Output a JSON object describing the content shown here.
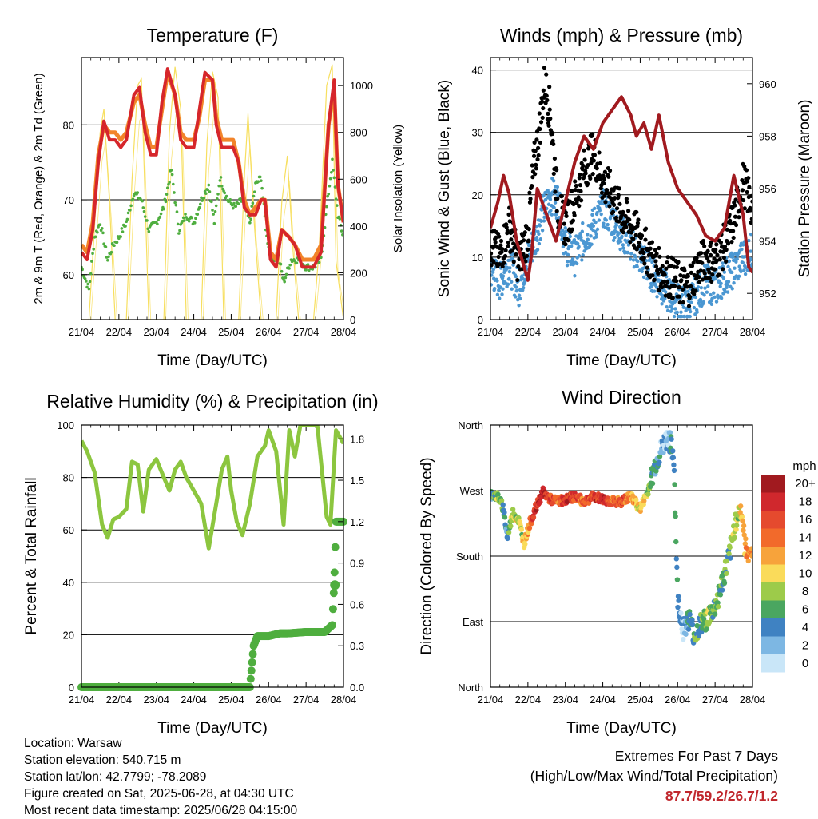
{
  "colors": {
    "temp_2m": "#d6262b",
    "temp_9m": "#f2842a",
    "dewpoint": "#4fae3f",
    "solar": "#f7df5f",
    "wind": "#4b97d2",
    "gust": "#000000",
    "pressure": "#a11a1f",
    "rh": "#8cc63f",
    "precip": "#4fae3f",
    "extremes": "#c0272d"
  },
  "chart_data": [
    {
      "id": "temperature",
      "type": "line",
      "title": "Temperature (F)",
      "xlabel": "Time (Day/UTC)",
      "ylabel": "2m & 9m T (Red, Orange) & 2m Td (Green)",
      "y2label": "Solar Insolation (Yellow)",
      "xlim": [
        0,
        7
      ],
      "x_ticks": [
        "21/04",
        "22/04",
        "23/04",
        "24/04",
        "25/04",
        "26/04",
        "27/04",
        "28/04"
      ],
      "ylim": [
        54,
        89
      ],
      "y_ticks": [
        60,
        70,
        80
      ],
      "gridlines": [
        60,
        70,
        80
      ],
      "y2lim": [
        0,
        1120
      ],
      "y2_ticks": [
        0,
        200,
        400,
        600,
        800,
        1000
      ],
      "grid": true,
      "series": [
        {
          "name": "2m T",
          "axis": "left",
          "x": [
            0,
            0.15,
            0.3,
            0.45,
            0.6,
            0.75,
            0.9,
            1.05,
            1.2,
            1.4,
            1.55,
            1.7,
            1.85,
            2.0,
            2.15,
            2.3,
            2.5,
            2.65,
            2.8,
            3.0,
            3.15,
            3.3,
            3.5,
            3.6,
            3.75,
            3.9,
            4.05,
            4.2,
            4.35,
            4.5,
            4.65,
            4.8,
            4.9,
            5.05,
            5.2,
            5.35,
            5.55,
            5.7,
            5.9,
            6.05,
            6.2,
            6.4,
            6.6,
            6.75,
            6.85,
            7.0
          ],
          "y": [
            63,
            62,
            66,
            75,
            80.5,
            78,
            78,
            77,
            78,
            84,
            85,
            79,
            76,
            76,
            83,
            87.5,
            84,
            78,
            77,
            77,
            82,
            87,
            86,
            80,
            77,
            77,
            77,
            75,
            69,
            68,
            68,
            70,
            70,
            62,
            61,
            66,
            65,
            64,
            61,
            61,
            61,
            63,
            80,
            86,
            72,
            67
          ]
        },
        {
          "name": "9m T",
          "axis": "left",
          "x": [
            0,
            0.15,
            0.3,
            0.45,
            0.6,
            0.75,
            0.9,
            1.05,
            1.2,
            1.4,
            1.55,
            1.7,
            1.85,
            2.0,
            2.15,
            2.3,
            2.5,
            2.65,
            2.8,
            3.0,
            3.15,
            3.3,
            3.5,
            3.6,
            3.75,
            3.9,
            4.05,
            4.2,
            4.35,
            4.5,
            4.65,
            4.8,
            4.9,
            5.05,
            5.2,
            5.35,
            5.55,
            5.7,
            5.9,
            6.05,
            6.2,
            6.4,
            6.6,
            6.75,
            6.85,
            7.0
          ],
          "y": [
            64,
            63,
            67,
            76,
            80,
            79,
            79,
            78,
            79,
            83,
            84,
            80,
            77,
            77,
            82,
            87,
            84,
            79,
            78,
            78,
            81,
            86,
            86,
            81,
            78,
            78,
            78,
            75,
            70,
            68,
            69,
            70,
            70,
            63,
            62,
            66,
            65,
            64,
            62,
            62,
            62,
            64,
            80,
            85,
            72,
            67
          ]
        },
        {
          "name": "2m Td",
          "axis": "left",
          "x": [
            0,
            0.2,
            0.35,
            0.5,
            0.7,
            0.85,
            1.0,
            1.2,
            1.4,
            1.6,
            1.8,
            2.0,
            2.2,
            2.4,
            2.6,
            2.8,
            3.0,
            3.2,
            3.4,
            3.55,
            3.7,
            3.9,
            4.1,
            4.3,
            4.5,
            4.65,
            4.8,
            4.95,
            5.1,
            5.25,
            5.4,
            5.6,
            5.8,
            6.0,
            6.2,
            6.4,
            6.55,
            6.7,
            6.85,
            7.0
          ],
          "y": [
            61,
            58,
            65,
            67,
            62,
            64,
            65,
            67,
            71,
            70,
            66,
            67,
            69,
            74,
            66,
            68,
            67,
            70,
            72,
            67,
            73,
            70,
            69,
            70,
            67,
            72,
            73,
            65,
            62,
            63,
            59,
            62,
            62,
            61,
            61,
            62,
            69,
            75,
            68,
            65
          ]
        },
        {
          "name": "Solar Insolation",
          "axis": "right",
          "x": [
            0,
            0.2,
            0.35,
            0.5,
            0.6,
            0.75,
            0.9,
            1.2,
            1.35,
            1.5,
            1.6,
            1.8,
            2.2,
            2.35,
            2.5,
            2.65,
            2.8,
            3.2,
            3.35,
            3.5,
            3.65,
            3.8,
            4.2,
            4.35,
            4.45,
            4.6,
            4.8,
            5.2,
            5.35,
            5.5,
            5.65,
            5.8,
            6.2,
            6.35,
            6.55,
            6.7,
            6.8,
            7.0
          ],
          "y": [
            0,
            0,
            400,
            800,
            900,
            500,
            0,
            0,
            600,
            1000,
            1030,
            0,
            0,
            800,
            1080,
            900,
            0,
            0,
            750,
            1060,
            950,
            0,
            0,
            600,
            880,
            450,
            0,
            0,
            500,
            700,
            300,
            0,
            0,
            300,
            1000,
            1090,
            250,
            0
          ]
        }
      ]
    },
    {
      "id": "winds",
      "type": "scatter",
      "title": "Winds (mph) & Pressure (mb)",
      "xlabel": "Time (Day/UTC)",
      "ylabel": "Sonic Wind & Gust (Blue, Black)",
      "y2label": "Station Pressure (Maroon)",
      "xlim": [
        0,
        7
      ],
      "x_ticks": [
        "21/04",
        "22/04",
        "23/04",
        "24/04",
        "25/04",
        "26/04",
        "27/04",
        "28/04"
      ],
      "ylim": [
        0,
        42
      ],
      "y_ticks": [
        0,
        10,
        20,
        30,
        40
      ],
      "gridlines": [
        10,
        20,
        30,
        40
      ],
      "y2lim": [
        951,
        961
      ],
      "y2_ticks": [
        952,
        954,
        956,
        958,
        960
      ],
      "grid": true,
      "series": [
        {
          "name": "Sonic Wind",
          "axis": "left",
          "x": [
            0,
            0.25,
            0.5,
            0.75,
            1.0,
            1.2,
            1.4,
            1.6,
            1.8,
            2.0,
            2.25,
            2.5,
            2.75,
            3.0,
            3.25,
            3.5,
            3.75,
            4.0,
            4.25,
            4.5,
            4.75,
            5.0,
            5.25,
            5.5,
            5.75,
            6.0,
            6.25,
            6.5,
            6.75,
            7.0
          ],
          "y": [
            8,
            6,
            9,
            5,
            10,
            13,
            17,
            20,
            19,
            12,
            10,
            13,
            15,
            18,
            16,
            14,
            12,
            10,
            8,
            6,
            4,
            3,
            2,
            4,
            6,
            5,
            7,
            8,
            10,
            11
          ]
        },
        {
          "name": "Gust",
          "axis": "left",
          "x": [
            0,
            0.25,
            0.5,
            0.75,
            1.0,
            1.15,
            1.3,
            1.45,
            1.6,
            1.8,
            2.0,
            2.25,
            2.5,
            2.75,
            3.0,
            3.25,
            3.5,
            3.75,
            4.0,
            4.25,
            4.5,
            4.75,
            5.0,
            5.25,
            5.5,
            5.75,
            6.0,
            6.25,
            6.5,
            6.75,
            7.0
          ],
          "y": [
            12,
            10,
            15,
            9,
            14,
            24,
            30,
            38,
            33,
            18,
            15,
            19,
            24,
            27,
            22,
            20,
            17,
            15,
            13,
            10,
            8,
            7,
            6,
            5,
            8,
            10,
            9,
            12,
            16,
            22,
            18
          ]
        },
        {
          "name": "Station Pressure",
          "axis": "right",
          "x": [
            0,
            0.2,
            0.35,
            0.5,
            0.7,
            0.9,
            1.0,
            1.1,
            1.25,
            1.5,
            1.75,
            2.0,
            2.25,
            2.5,
            2.75,
            3.0,
            3.25,
            3.5,
            3.75,
            3.9,
            4.1,
            4.3,
            4.5,
            4.75,
            5.0,
            5.25,
            5.5,
            5.75,
            6.0,
            6.25,
            6.5,
            6.75,
            6.9,
            7.0
          ],
          "y": [
            954.5,
            955.5,
            956.5,
            955.8,
            954,
            953,
            952.5,
            953.5,
            956,
            955,
            954,
            955.5,
            957,
            958,
            957.5,
            958.5,
            959,
            959.5,
            958.8,
            958,
            958.5,
            957.5,
            958.8,
            957,
            956,
            955.5,
            955,
            954.2,
            954,
            954.5,
            956.5,
            955,
            953,
            952.8
          ]
        }
      ]
    },
    {
      "id": "humidity",
      "type": "line",
      "title": "Relative Humidity (%) & Precipitation (in)",
      "xlabel": "Time (Day/UTC)",
      "ylabel": "Percent & Total Rainfall",
      "xlim": [
        0,
        7
      ],
      "x_ticks": [
        "21/04",
        "22/04",
        "23/04",
        "24/04",
        "25/04",
        "26/04",
        "27/04",
        "28/04"
      ],
      "ylim": [
        0,
        100
      ],
      "y_ticks": [
        0,
        20,
        40,
        60,
        80,
        100
      ],
      "gridlines": [
        20,
        40,
        60,
        80
      ],
      "y2lim": [
        0,
        1.9
      ],
      "y2_ticks": [
        "0.0",
        "0.3",
        "0.6",
        "0.9",
        "1.2",
        "1.5",
        "1.8"
      ],
      "grid": true,
      "series": [
        {
          "name": "Relative Humidity",
          "axis": "left",
          "x": [
            0,
            0.15,
            0.35,
            0.55,
            0.7,
            0.85,
            1.0,
            1.2,
            1.35,
            1.5,
            1.65,
            1.8,
            2.0,
            2.2,
            2.35,
            2.5,
            2.65,
            2.8,
            3.0,
            3.2,
            3.4,
            3.6,
            3.75,
            3.9,
            4.0,
            4.15,
            4.3,
            4.5,
            4.7,
            4.9,
            5.0,
            5.2,
            5.4,
            5.55,
            5.7,
            5.85,
            6.0,
            6.3,
            6.55,
            6.65,
            6.8,
            7.0
          ],
          "y": [
            94,
            90,
            82,
            62,
            57,
            64,
            65,
            68,
            86,
            85,
            67,
            83,
            87,
            80,
            75,
            83,
            86,
            80,
            75,
            70,
            53,
            70,
            83,
            88,
            75,
            63,
            58,
            70,
            88,
            92,
            98,
            90,
            62,
            98,
            88,
            100,
            100,
            100,
            65,
            62,
            98,
            93
          ]
        },
        {
          "name": "Total Rainfall",
          "axis": "right",
          "x": [
            0,
            1,
            2,
            3,
            4,
            4.5,
            4.6,
            4.7,
            5.0,
            5.3,
            5.5,
            6.0,
            6.5,
            6.7,
            6.75,
            6.8,
            7.0
          ],
          "y": [
            0,
            0,
            0,
            0,
            0,
            0.0,
            0.3,
            0.37,
            0.37,
            0.39,
            0.39,
            0.4,
            0.4,
            0.45,
            0.74,
            1.2,
            1.2
          ]
        }
      ]
    },
    {
      "id": "direction",
      "type": "scatter",
      "title": "Wind Direction",
      "xlabel": "Time (Day/UTC)",
      "ylabel": "Direction (Colored By Speed)",
      "xlim": [
        0,
        7
      ],
      "x_ticks": [
        "21/04",
        "22/04",
        "23/04",
        "24/04",
        "25/04",
        "26/04",
        "27/04",
        "28/04"
      ],
      "ylim": [
        0,
        360
      ],
      "y_ticks": [
        "North",
        "East",
        "South",
        "West",
        "North"
      ],
      "gridlines": [
        90,
        180,
        270
      ],
      "grid": true,
      "legend": {
        "title": "mph",
        "placement": "right",
        "labels": [
          "20+",
          "18",
          "16",
          "14",
          "12",
          "10",
          "8",
          "6",
          "4",
          "2",
          "0"
        ],
        "colors": [
          "#a11a1f",
          "#d0282d",
          "#e54a2e",
          "#f26a2b",
          "#f7a33b",
          "#fadb5a",
          "#9dcb4a",
          "#4aa660",
          "#3f82c2",
          "#7db7e3",
          "#c9e6f8"
        ]
      },
      "series": [
        {
          "name": "Direction",
          "x": [
            0,
            0.2,
            0.35,
            0.45,
            0.6,
            0.75,
            0.9,
            1.05,
            1.2,
            1.4,
            1.6,
            1.8,
            2.0,
            2.25,
            2.5,
            2.75,
            3.0,
            3.25,
            3.5,
            3.75,
            4.0,
            4.2,
            4.4,
            4.6,
            4.75,
            4.9,
            5.0,
            5.15,
            5.3,
            5.45,
            5.6,
            5.8,
            6.0,
            6.2,
            6.4,
            6.55,
            6.7,
            6.8,
            7.0
          ],
          "y": [
            265,
            262,
            245,
            205,
            240,
            230,
            198,
            225,
            245,
            268,
            258,
            255,
            258,
            262,
            255,
            262,
            258,
            255,
            255,
            262,
            245,
            268,
            305,
            330,
            345,
            315,
            120,
            80,
            95,
            70,
            85,
            95,
            110,
            145,
            185,
            230,
            245,
            190,
            185
          ],
          "speed": [
            4,
            8,
            6,
            4,
            10,
            8,
            10,
            14,
            18,
            20,
            16,
            14,
            18,
            16,
            14,
            16,
            18,
            14,
            16,
            12,
            10,
            8,
            4,
            2,
            2,
            6,
            4,
            2,
            4,
            6,
            6,
            8,
            6,
            6,
            6,
            8,
            10,
            12,
            14
          ]
        }
      ]
    }
  ],
  "footer": {
    "location": "Location: Warsaw",
    "elevation": "Station elevation: 540.715 m",
    "latlon": "Station lat/lon: 42.7799; -78.2089",
    "created": "Figure created on Sat, 2025-06-28, at 04:30 UTC",
    "timestamp": "Most recent data timestamp: 2025/06/28 04:15:00",
    "extremes_title": "Extremes For Past 7 Days",
    "extremes_sub": "(High/Low/Max Wind/Total Precipitation)",
    "extremes_values": "87.7/59.2/26.7/1.2"
  }
}
